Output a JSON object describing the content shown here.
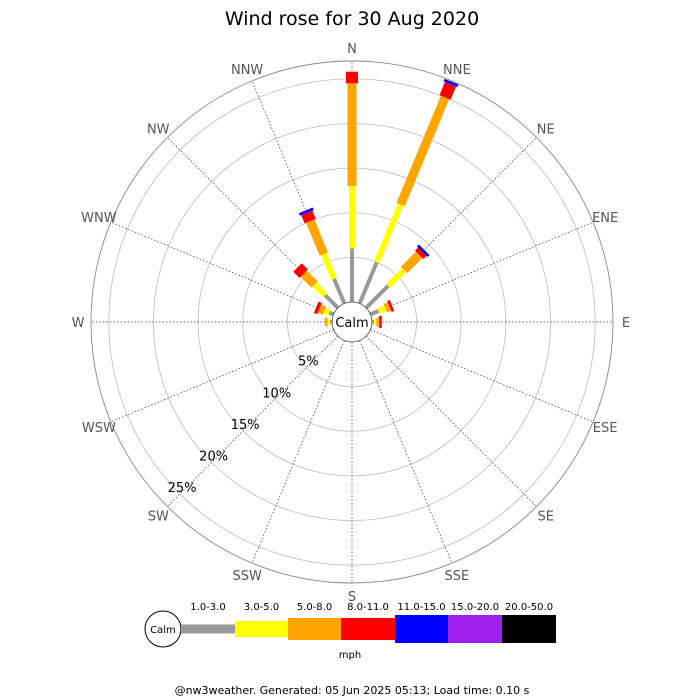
{
  "title": "Wind rose for 30 Aug 2020",
  "footer": "@nw3weather. Generated: 05 Jun 2025 05:13; Load time: 0.10 s",
  "chart_data": {
    "type": "wind-rose",
    "title": "Wind rose for 30 Aug 2020",
    "directions": [
      "N",
      "NNE",
      "NE",
      "ENE",
      "E",
      "ESE",
      "SE",
      "SSE",
      "S",
      "SSW",
      "SW",
      "WSW",
      "W",
      "WNW",
      "NW",
      "NNW"
    ],
    "radial_ticks": [
      "5%",
      "10%",
      "15%",
      "20%",
      "25%"
    ],
    "radial_max_percent": 27,
    "calm_label": "Calm",
    "unit": "mph",
    "bins": [
      {
        "label": "1.0-3.0",
        "color": "#999999"
      },
      {
        "label": "3.0-5.0",
        "color": "#ffff00"
      },
      {
        "label": "5.0-8.0",
        "color": "#ffa500"
      },
      {
        "label": "8.0-11.0",
        "color": "#ff0000"
      },
      {
        "label": "11.0-15.0",
        "color": "#0000ff"
      },
      {
        "label": "15.0-20.0",
        "color": "#a020f0"
      },
      {
        "label": "20.0-50.0",
        "color": "#000000"
      }
    ],
    "series_percent": {
      "N": [
        6.0,
        7.0,
        11.5,
        1.3,
        0,
        0,
        0
      ],
      "NNE": [
        5.0,
        7.0,
        13.0,
        1.6,
        0.3,
        0,
        0
      ],
      "NE": [
        3.5,
        2.5,
        2.4,
        0.5,
        0.3,
        0,
        0
      ],
      "ENE": [
        1.0,
        0.8,
        0.5,
        0.3,
        0,
        0,
        0
      ],
      "E": [
        0.2,
        0.3,
        0.3,
        0.3,
        0,
        0,
        0
      ],
      "ESE": [
        0,
        0,
        0,
        0,
        0,
        0,
        0
      ],
      "SE": [
        0,
        0,
        0,
        0,
        0,
        0,
        0
      ],
      "SSE": [
        0,
        0,
        0,
        0,
        0,
        0,
        0
      ],
      "S": [
        0,
        0,
        0,
        0,
        0,
        0,
        0
      ],
      "SSW": [
        0,
        0,
        0,
        0,
        0,
        0,
        0
      ],
      "SW": [
        0,
        0,
        0,
        0,
        0,
        0,
        0
      ],
      "WSW": [
        0,
        0,
        0,
        0,
        0,
        0,
        0
      ],
      "W": [
        0.2,
        0.3,
        0.3,
        0,
        0,
        0,
        0
      ],
      "WNW": [
        0.5,
        0.6,
        0.6,
        0.4,
        0,
        0,
        0
      ],
      "NW": [
        2.0,
        1.7,
        1.7,
        1.0,
        0,
        0,
        0
      ],
      "NNW": [
        3.0,
        3.0,
        4.0,
        1.0,
        0.3,
        0,
        0
      ]
    }
  }
}
